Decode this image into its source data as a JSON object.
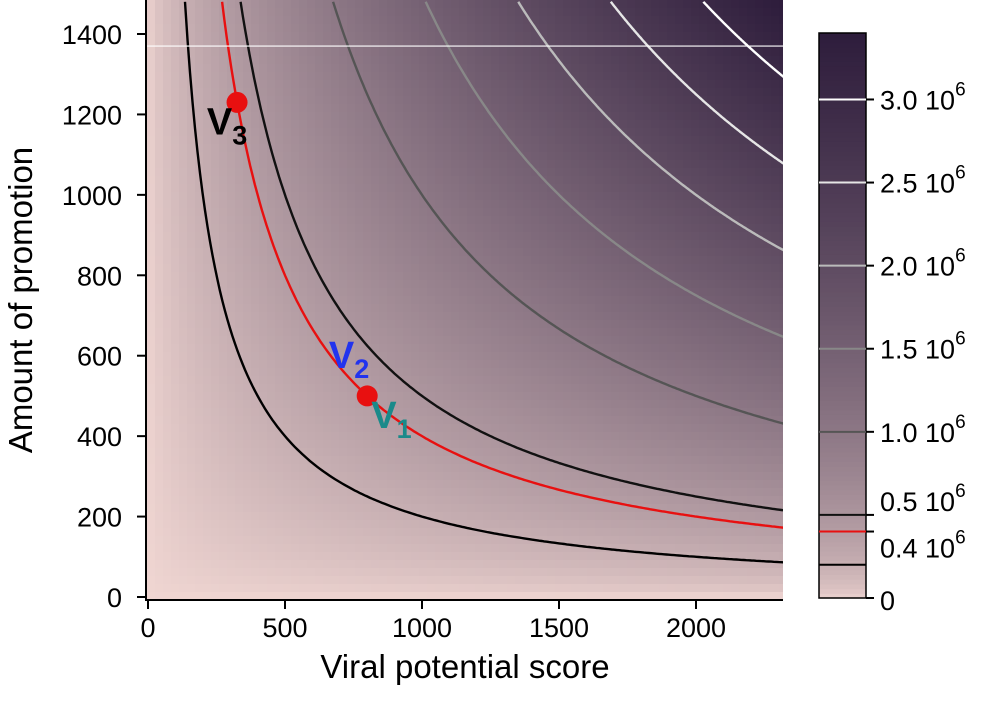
{
  "chart_data": {
    "type": "contour",
    "xlabel": "Viral potential score",
    "ylabel": "Amount of promotion",
    "xlim": [
      0,
      2320
    ],
    "ylim": [
      0,
      1480
    ],
    "x_ticks": [
      0,
      500,
      1000,
      1500,
      2000
    ],
    "y_ticks": [
      0,
      200,
      400,
      600,
      800,
      1000,
      1200,
      1400
    ],
    "surface": "product of viral potential score and amount of promotion",
    "zlim": [
      0,
      3400000
    ],
    "colorbar": {
      "low_color": "#f0d6d2",
      "high_color": "#2e1d3c",
      "ticks": [
        {
          "value": 0,
          "label": "0",
          "exp": ""
        },
        {
          "value": 400000,
          "label": "0.4 10",
          "exp": "6",
          "color": "#e81010"
        },
        {
          "value": 500000,
          "label": "0.5 10",
          "exp": "6"
        },
        {
          "value": 1000000,
          "label": "1.0 10",
          "exp": "6"
        },
        {
          "value": 1500000,
          "label": "1.5 10",
          "exp": "6"
        },
        {
          "value": 2000000,
          "label": "2.0 10",
          "exp": "6"
        },
        {
          "value": 2500000,
          "label": "2.5 10",
          "exp": "6"
        },
        {
          "value": 3000000,
          "label": "3.0 10",
          "exp": "6"
        }
      ]
    },
    "contours": [
      {
        "level": 200000,
        "color": "#000000"
      },
      {
        "level": 400000,
        "color": "#e81010"
      },
      {
        "level": 500000,
        "color": "#111111"
      },
      {
        "level": 1000000,
        "color": "#555555"
      },
      {
        "level": 1500000,
        "color": "#888888"
      },
      {
        "level": 2000000,
        "color": "#bbbbbb"
      },
      {
        "level": 2500000,
        "color": "#e6e6e6"
      },
      {
        "level": 3000000,
        "color": "#ffffff"
      }
    ],
    "hline": {
      "y": 1370,
      "color": "#ffffff"
    },
    "points": [
      {
        "x": 325,
        "y": 1230,
        "color": "#e81010"
      },
      {
        "x": 800,
        "y": 500,
        "color": "#e81010"
      }
    ],
    "point_labels": [
      {
        "text": "V",
        "sub": "3",
        "x": 215,
        "y": 1150,
        "color": "#000000"
      },
      {
        "text": "V",
        "sub": "2",
        "x": 660,
        "y": 570,
        "color": "#2233ee"
      },
      {
        "text": "V",
        "sub": "1",
        "x": 815,
        "y": 420,
        "color": "#1a8a8a"
      }
    ]
  }
}
